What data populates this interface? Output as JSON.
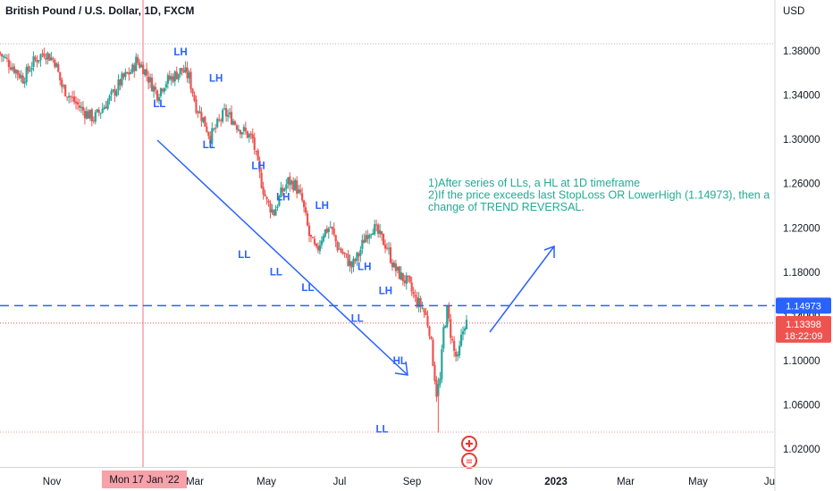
{
  "header": {
    "title": "British Pound / U.S. Dollar, 1D, FXCM",
    "currency": "USD"
  },
  "colors": {
    "up": "#26a69a",
    "down": "#ef5350",
    "annot": "#2962ff",
    "note": "#22ab94",
    "crosshair": "#f7a1a9"
  },
  "chart_data": {
    "type": "candlestick",
    "title": "British Pound / U.S. Dollar, 1D, FXCM",
    "y_axis": {
      "unit": "USD",
      "range": [
        1.0,
        1.4
      ],
      "ticks": [
        "1.38000",
        "1.34000",
        "1.30000",
        "1.26000",
        "1.22000",
        "1.18000",
        "1.14000",
        "1.10000",
        "1.06000",
        "1.02000"
      ]
    },
    "x_axis": {
      "ticks": [
        "Nov",
        "Mar",
        "May",
        "Jul",
        "Sep",
        "Nov",
        "2023",
        "Mar",
        "May",
        "Ju"
      ],
      "crosshair_label": "Mon 17 Jan '22"
    },
    "ohlc_path": [
      [
        0,
        1.379
      ],
      [
        4,
        1.366
      ],
      [
        7,
        1.355
      ],
      [
        10,
        1.37
      ],
      [
        13,
        1.379
      ],
      [
        16,
        1.371
      ],
      [
        18,
        1.348
      ],
      [
        21,
        1.336
      ],
      [
        24,
        1.326
      ],
      [
        27,
        1.319
      ],
      [
        29,
        1.326
      ],
      [
        32,
        1.339
      ],
      [
        35,
        1.354
      ],
      [
        38,
        1.363
      ],
      [
        39,
        1.371
      ],
      [
        41,
        1.365
      ],
      [
        43,
        1.352
      ],
      [
        45,
        1.341
      ],
      [
        47,
        1.351
      ],
      [
        50,
        1.358
      ],
      [
        52,
        1.363
      ],
      [
        54,
        1.356
      ],
      [
        56,
        1.33
      ],
      [
        58,
        1.318
      ],
      [
        60,
        1.302
      ],
      [
        62,
        1.313
      ],
      [
        64,
        1.324
      ],
      [
        66,
        1.319
      ],
      [
        68,
        1.311
      ],
      [
        70,
        1.306
      ],
      [
        72,
        1.3
      ],
      [
        74,
        1.267
      ],
      [
        76,
        1.243
      ],
      [
        78,
        1.234
      ],
      [
        80,
        1.251
      ],
      [
        82,
        1.262
      ],
      [
        84,
        1.259
      ],
      [
        86,
        1.244
      ],
      [
        88,
        1.213
      ],
      [
        90,
        1.198
      ],
      [
        92,
        1.216
      ],
      [
        94,
        1.221
      ],
      [
        96,
        1.203
      ],
      [
        98,
        1.195
      ],
      [
        100,
        1.185
      ],
      [
        102,
        1.196
      ],
      [
        104,
        1.214
      ],
      [
        106,
        1.221
      ],
      [
        108,
        1.212
      ],
      [
        110,
        1.203
      ],
      [
        112,
        1.184
      ],
      [
        114,
        1.176
      ],
      [
        116,
        1.17
      ],
      [
        118,
        1.155
      ],
      [
        120,
        1.148
      ],
      [
        121,
        1.14
      ],
      [
        122,
        1.128
      ],
      [
        123,
        1.1
      ],
      [
        124,
        1.071
      ],
      [
        125,
        1.082
      ],
      [
        126,
        1.128
      ],
      [
        127,
        1.145
      ],
      [
        128,
        1.125
      ],
      [
        129,
        1.108
      ],
      [
        130,
        1.1
      ],
      [
        131,
        1.12
      ],
      [
        132,
        1.134
      ]
    ],
    "annotations": {
      "pivots": [
        {
          "label": "LH",
          "date": 42,
          "price": 1.376
        },
        {
          "label": "LL",
          "date": 36,
          "price": 1.329
        },
        {
          "label": "LH",
          "date": 52,
          "price": 1.352
        },
        {
          "label": "LL",
          "date": 50,
          "price": 1.292
        },
        {
          "label": "LH",
          "date": 64,
          "price": 1.273
        },
        {
          "label": "LH",
          "date": 71,
          "price": 1.245
        },
        {
          "label": "LL",
          "date": 60,
          "price": 1.193
        },
        {
          "label": "LH",
          "date": 82,
          "price": 1.237
        },
        {
          "label": "LL",
          "date": 69,
          "price": 1.177
        },
        {
          "label": "LL",
          "date": 78,
          "price": 1.163
        },
        {
          "label": "LH",
          "date": 94,
          "price": 1.182
        },
        {
          "label": "LL",
          "date": 92,
          "price": 1.135
        },
        {
          "label": "LH",
          "date": 100,
          "price": 1.16
        },
        {
          "label": "HL",
          "date": 104,
          "price": 1.097
        },
        {
          "label": "LL",
          "date": 99,
          "price": 1.035
        }
      ],
      "note_lines": [
        "1)After series of LLs, a HL at 1D timeframe",
        "2)If the price exceeds last StopLoss OR LowerHigh (1.14973), then a",
        "change of TREND REVERSAL."
      ],
      "resistance_level": "1.14973",
      "current_price": "1.13398",
      "countdown": "18:22:09",
      "hidden_tick": "1.14000"
    }
  }
}
